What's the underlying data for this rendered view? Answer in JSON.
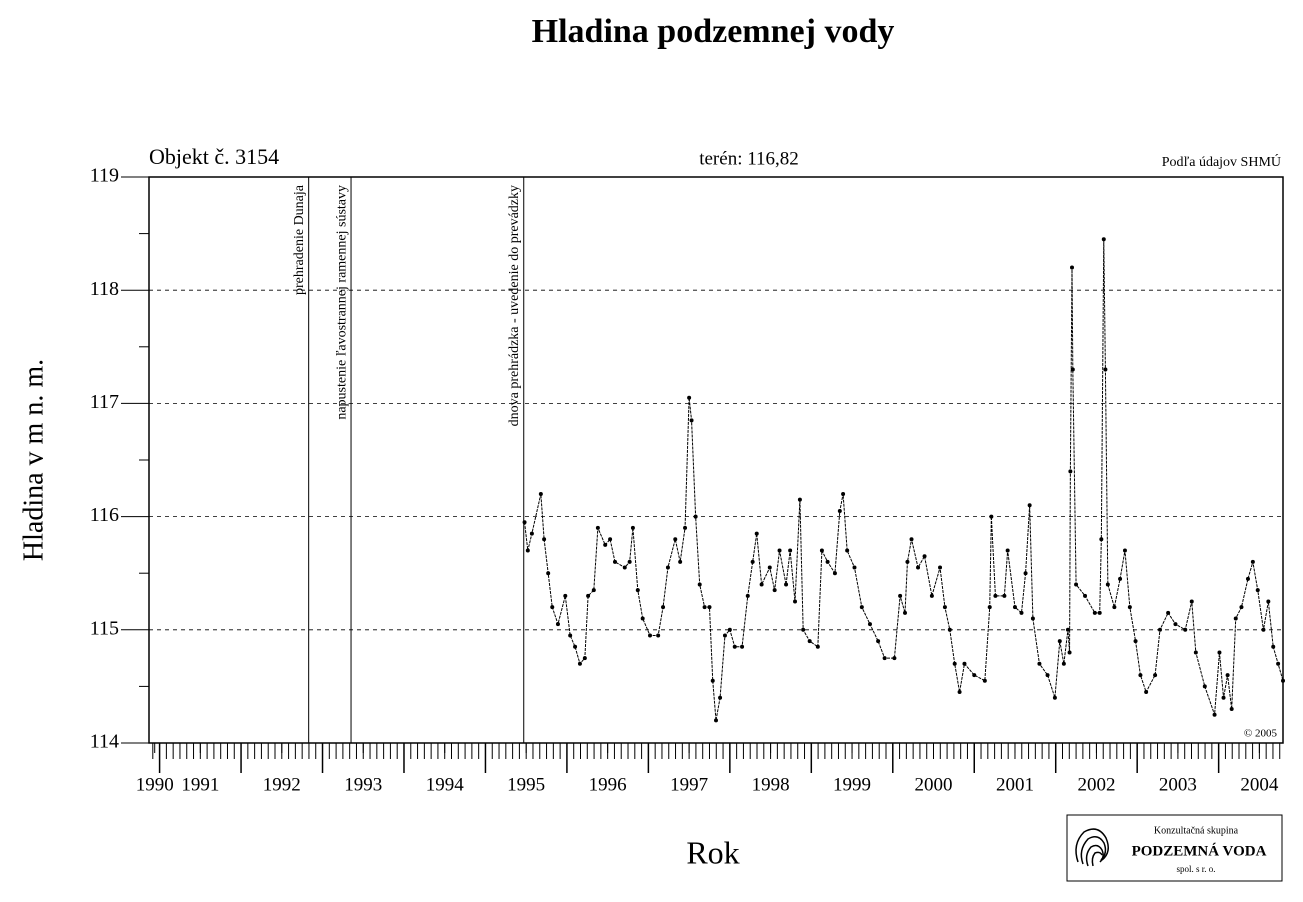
{
  "chart_data": {
    "type": "line",
    "title": "Hladina podzemnej vody",
    "object_label": "Objekt č. 3154",
    "terrain_label": "terén: 116,82",
    "source": "Podľa údajov SHMÚ",
    "copyright": "© 2005",
    "y_label": "Hladina v m n. m.",
    "x_label": "Rok",
    "logo": {
      "line1": "Konzultačná skupina",
      "line2": "PODZEMNÁ VODA",
      "line3": "spol. s r. o."
    },
    "xlim": [
      1990.87,
      2004.79
    ],
    "ylim": [
      114,
      119
    ],
    "yticks": [
      114,
      115,
      116,
      117,
      118,
      119
    ],
    "xticks": [
      {
        "value": 1990.94,
        "label": "1990"
      },
      {
        "value": 1991.5,
        "label": "1991"
      },
      {
        "value": 1992.5,
        "label": "1992"
      },
      {
        "value": 1993.5,
        "label": "1993"
      },
      {
        "value": 1994.5,
        "label": "1994"
      },
      {
        "value": 1995.5,
        "label": "1995"
      },
      {
        "value": 1996.5,
        "label": "1996"
      },
      {
        "value": 1997.5,
        "label": "1997"
      },
      {
        "value": 1998.5,
        "label": "1998"
      },
      {
        "value": 1999.5,
        "label": "1999"
      },
      {
        "value": 2000.5,
        "label": "2000"
      },
      {
        "value": 2001.5,
        "label": "2001"
      },
      {
        "value": 2002.5,
        "label": "2002"
      },
      {
        "value": 2003.5,
        "label": "2003"
      },
      {
        "value": 2004.5,
        "label": "2004"
      }
    ],
    "grid": true,
    "annotations": [
      {
        "x": 1992.83,
        "text": "prehradenie Dunaja"
      },
      {
        "x": 1993.35,
        "text": "napustenie ľavostrannej ramennej sústavy"
      },
      {
        "x": 1995.47,
        "text": "dnova prehrádzka - uvedenie do prevádzky"
      }
    ],
    "color": "#000000",
    "x": [
      1995.48,
      1995.52,
      1995.57,
      1995.68,
      1995.72,
      1995.77,
      1995.82,
      1995.89,
      1995.98,
      1996.04,
      1996.1,
      1996.16,
      1996.22,
      1996.26,
      1996.33,
      1996.38,
      1996.47,
      1996.53,
      1996.59,
      1996.71,
      1996.77,
      1996.81,
      1996.87,
      1996.93,
      1997.02,
      1997.12,
      1997.18,
      1997.24,
      1997.33,
      1997.39,
      1997.45,
      1997.5,
      1997.53,
      1997.58,
      1997.63,
      1997.69,
      1997.75,
      1997.79,
      1997.83,
      1997.88,
      1997.94,
      1998.0,
      1998.06,
      1998.15,
      1998.22,
      1998.28,
      1998.33,
      1998.39,
      1998.49,
      1998.55,
      1998.61,
      1998.69,
      1998.74,
      1998.8,
      1998.86,
      1998.9,
      1998.98,
      1999.08,
      1999.13,
      1999.2,
      1999.29,
      1999.35,
      1999.39,
      1999.44,
      1999.53,
      1999.62,
      1999.72,
      1999.82,
      1999.9,
      2000.02,
      2000.09,
      2000.15,
      2000.18,
      2000.23,
      2000.31,
      2000.39,
      2000.48,
      2000.58,
      2000.64,
      2000.7,
      2000.76,
      2000.82,
      2000.88,
      2001.0,
      2001.13,
      2001.19,
      2001.21,
      2001.26,
      2001.37,
      2001.41,
      2001.5,
      2001.58,
      2001.63,
      2001.68,
      2001.72,
      2001.8,
      2001.9,
      2001.99,
      2002.05,
      2002.1,
      2002.15,
      2002.17,
      2002.18,
      2002.2,
      2002.21,
      2002.25,
      2002.36,
      2002.48,
      2002.54,
      2002.56,
      2002.59,
      2002.61,
      2002.64,
      2002.72,
      2002.79,
      2002.85,
      2002.91,
      2002.98,
      2003.04,
      2003.11,
      2003.22,
      2003.28,
      2003.38,
      2003.47,
      2003.59,
      2003.67,
      2003.72,
      2003.83,
      2003.95,
      2004.01,
      2004.06,
      2004.11,
      2004.16,
      2004.21,
      2004.28,
      2004.36,
      2004.42,
      2004.48,
      2004.55,
      2004.61,
      2004.67,
      2004.73,
      2004.79
    ],
    "values": [
      115.95,
      115.7,
      115.85,
      116.2,
      115.8,
      115.5,
      115.2,
      115.05,
      115.3,
      114.95,
      114.85,
      114.7,
      114.75,
      115.3,
      115.35,
      115.9,
      115.75,
      115.8,
      115.6,
      115.55,
      115.6,
      115.9,
      115.35,
      115.1,
      114.95,
      114.95,
      115.2,
      115.55,
      115.8,
      115.6,
      115.9,
      117.05,
      116.85,
      116.0,
      115.4,
      115.2,
      115.2,
      114.55,
      114.2,
      114.4,
      114.95,
      115.0,
      114.85,
      114.85,
      115.3,
      115.6,
      115.85,
      115.4,
      115.55,
      115.35,
      115.7,
      115.4,
      115.7,
      115.25,
      116.15,
      115.0,
      114.9,
      114.85,
      115.7,
      115.6,
      115.5,
      116.05,
      116.2,
      115.7,
      115.55,
      115.2,
      115.05,
      114.9,
      114.75,
      114.75,
      115.3,
      115.15,
      115.6,
      115.8,
      115.55,
      115.65,
      115.3,
      115.55,
      115.2,
      115.0,
      114.7,
      114.45,
      114.7,
      114.6,
      114.55,
      115.2,
      116.0,
      115.3,
      115.3,
      115.7,
      115.2,
      115.15,
      115.5,
      116.1,
      115.1,
      114.7,
      114.6,
      114.4,
      114.9,
      114.7,
      115.0,
      114.8,
      116.4,
      118.2,
      117.3,
      115.4,
      115.3,
      115.15,
      115.15,
      115.8,
      118.45,
      117.3,
      115.4,
      115.2,
      115.45,
      115.7,
      115.2,
      114.9,
      114.6,
      114.45,
      114.6,
      115.0,
      115.15,
      115.05,
      115.0,
      115.25,
      114.8,
      114.5,
      114.25,
      114.8,
      114.4,
      114.6,
      114.3,
      115.1,
      115.2,
      115.45,
      115.6,
      115.35,
      115.0,
      115.25,
      114.85,
      114.7,
      114.55
    ]
  }
}
